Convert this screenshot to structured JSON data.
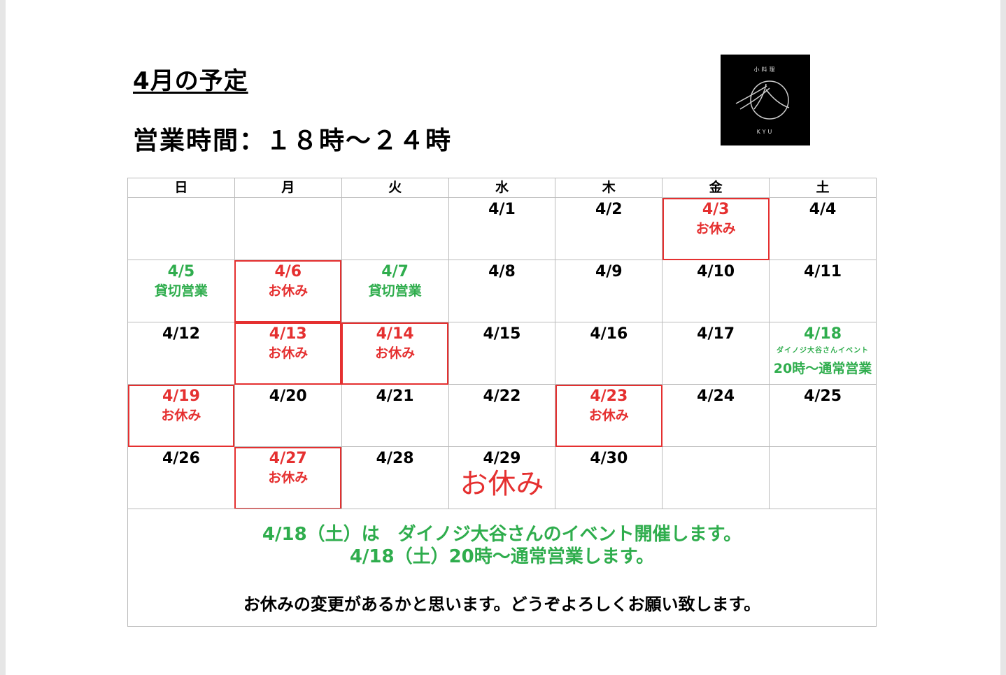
{
  "title": "4月の予定",
  "hours": "営業時間：１８時～２４時",
  "logo": {
    "top": "小料理",
    "bottom": "KYU"
  },
  "colors": {
    "off": "#e53030",
    "special": "#2fad4d"
  },
  "calendar": {
    "weekdays": [
      "日",
      "月",
      "火",
      "水",
      "木",
      "金",
      "土"
    ],
    "weeks": [
      [
        {},
        {},
        {},
        {
          "date": "4/1"
        },
        {
          "date": "4/2"
        },
        {
          "date": "4/3",
          "note": "お休み",
          "status": "off"
        },
        {
          "date": "4/4"
        }
      ],
      [
        {
          "date": "4/5",
          "note": "貸切営業",
          "status": "green"
        },
        {
          "date": "4/6",
          "note": "お休み",
          "status": "off"
        },
        {
          "date": "4/7",
          "note": "貸切営業",
          "status": "green"
        },
        {
          "date": "4/8"
        },
        {
          "date": "4/9"
        },
        {
          "date": "4/10"
        },
        {
          "date": "4/11"
        }
      ],
      [
        {
          "date": "4/12"
        },
        {
          "date": "4/13",
          "note": "お休み",
          "status": "off"
        },
        {
          "date": "4/14",
          "note": "お休み",
          "status": "off"
        },
        {
          "date": "4/15"
        },
        {
          "date": "4/16"
        },
        {
          "date": "4/17"
        },
        {
          "date": "4/18",
          "small": "ダイノジ大谷さんイベント",
          "note": "20時～通常営業",
          "status": "green"
        }
      ],
      [
        {
          "date": "4/19",
          "note": "お休み",
          "status": "off"
        },
        {
          "date": "4/20"
        },
        {
          "date": "4/21"
        },
        {
          "date": "4/22"
        },
        {
          "date": "4/23",
          "note": "お休み",
          "status": "off"
        },
        {
          "date": "4/24"
        },
        {
          "date": "4/25"
        }
      ],
      [
        {
          "date": "4/26"
        },
        {
          "date": "4/27",
          "note": "お休み",
          "status": "off"
        },
        {
          "date": "4/28"
        },
        {
          "date": "4/29",
          "big": "お休み"
        },
        {
          "date": "4/30"
        },
        {},
        {}
      ]
    ]
  },
  "footer": {
    "line1": "4/18（土）は　ダイノジ大谷さんのイベント開催します。",
    "line2": "4/18（土）20時～通常営業します。",
    "line3": "お休みの変更があるかと思います。どうぞよろしくお願い致します。"
  }
}
